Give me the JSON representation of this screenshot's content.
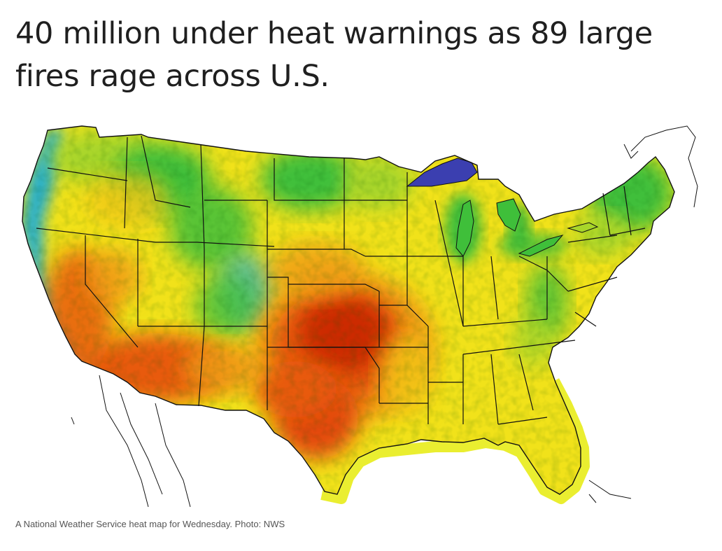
{
  "article": {
    "headline": "40 million under heat warnings as 89 large fires rage across U.S.",
    "caption": "A National Weather Service heat map for Wednesday. Photo: NWS"
  },
  "map": {
    "subject": "contiguous United States heat map",
    "palette": {
      "hottest": "#cc2a00",
      "hot": "#e85a10",
      "warm": "#f09a14",
      "mild": "#f3e418",
      "cool": "#a8d62a",
      "cooler": "#3fbf3a",
      "cold": "#2bb0c8",
      "coldest": "#3b3fb0",
      "coast_glow": "#e8ec1a",
      "state_lines": "#111111"
    }
  }
}
